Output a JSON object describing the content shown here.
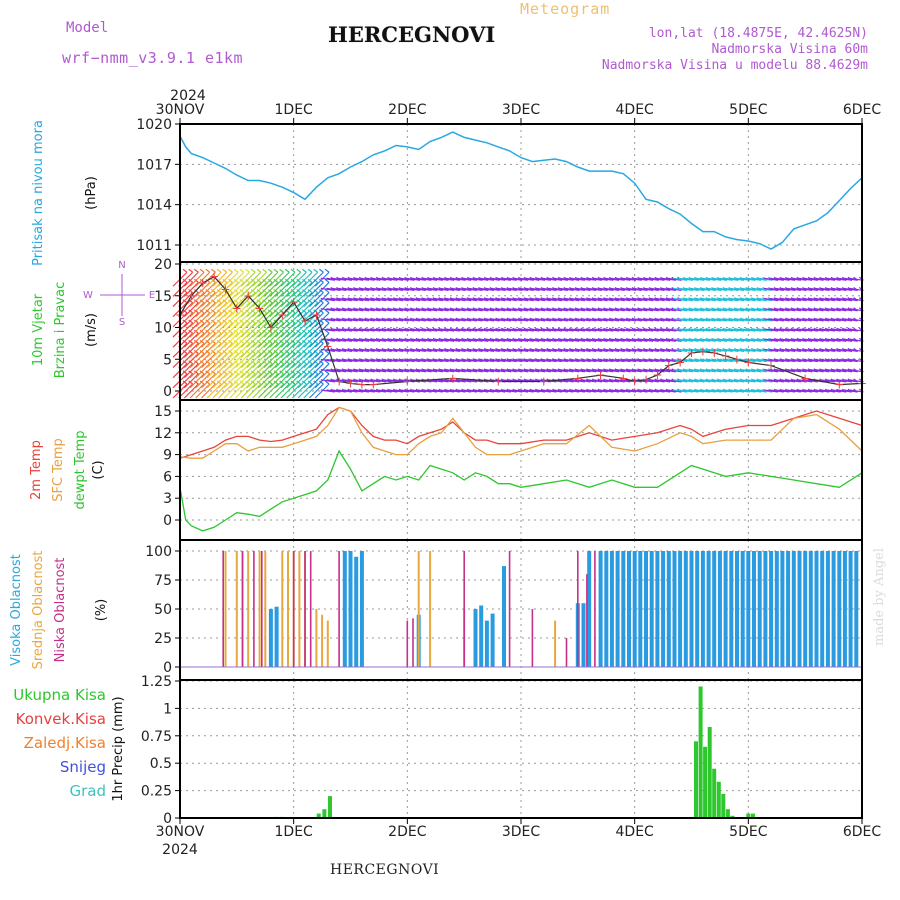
{
  "header": {
    "model_label": "Model",
    "model_value": "wrf−nmm_v3.9.1  e1km",
    "title": "HERCEGNOVI",
    "meteogram_label": "Meteogram",
    "lonlat": "lon,lat (18.4875E, 42.4625N)",
    "altitude": "Nadmorska Visina 60m",
    "model_altitude": "Nadmorska Visina u modelu 88.4629m"
  },
  "footer": {
    "title": "HERCEGNOVI",
    "watermark": "made by Angel"
  },
  "chart_data": [
    {
      "type": "line",
      "panel": "pressure",
      "ylabel": [
        "Pritisak na nivou mora",
        "(hPa)"
      ],
      "ylim": [
        1010,
        1020
      ],
      "yticks": [
        1011,
        1014,
        1017,
        1020
      ],
      "x_top_labels": {
        "year": "2024",
        "days": [
          "30NOV",
          "1DEC",
          "2DEC",
          "3DEC",
          "4DEC",
          "5DEC",
          "6DEC"
        ]
      },
      "x_bottom_labels": {
        "year": "2024",
        "days": [
          "30NOV",
          "1DEC",
          "2DEC",
          "3DEC",
          "4DEC",
          "5DEC",
          "6DEC"
        ]
      },
      "series": [
        {
          "color": "#29a8e0",
          "x": [
            0,
            0.05,
            0.1,
            0.2,
            0.3,
            0.4,
            0.5,
            0.6,
            0.7,
            0.8,
            0.9,
            1.0,
            1.1,
            1.2,
            1.3,
            1.4,
            1.5,
            1.6,
            1.7,
            1.8,
            1.9,
            2.0,
            2.1,
            2.2,
            2.3,
            2.4,
            2.5,
            2.6,
            2.7,
            2.8,
            2.9,
            3.0,
            3.1,
            3.2,
            3.3,
            3.4,
            3.5,
            3.6,
            3.7,
            3.8,
            3.9,
            4.0,
            4.1,
            4.2,
            4.3,
            4.4,
            4.5,
            4.6,
            4.7,
            4.8,
            4.9,
            5.0,
            5.1,
            5.2,
            5.3,
            5.4,
            5.5,
            5.6,
            5.7,
            5.8,
            5.9,
            6.0
          ],
          "values": [
            1019.1,
            1018.3,
            1017.8,
            1017.5,
            1017.1,
            1016.7,
            1016.2,
            1015.8,
            1015.8,
            1015.6,
            1015.3,
            1014.9,
            1014.4,
            1015.3,
            1016.0,
            1016.3,
            1016.8,
            1017.2,
            1017.7,
            1018.0,
            1018.4,
            1018.3,
            1018.1,
            1018.7,
            1019.0,
            1019.4,
            1019.0,
            1018.8,
            1018.6,
            1018.3,
            1018.0,
            1017.5,
            1017.2,
            1017.3,
            1017.4,
            1017.2,
            1016.8,
            1016.5,
            1016.5,
            1016.5,
            1016.3,
            1015.6,
            1014.4,
            1014.2,
            1013.7,
            1013.3,
            1012.6,
            1012.0,
            1012.0,
            1011.6,
            1011.4,
            1011.3,
            1011.1,
            1010.7,
            1011.2,
            1012.2,
            1012.5,
            1012.8,
            1013.4,
            1014.3,
            1015.2,
            1016.0
          ]
        }
      ]
    },
    {
      "type": "line",
      "panel": "wind",
      "ylabel": [
        "10m Vjetar",
        "Brzina i Pravac",
        "(m/s)"
      ],
      "ylim": [
        -1,
        20
      ],
      "yticks": [
        0,
        5,
        10,
        15,
        20
      ],
      "compass": [
        "N",
        "W",
        "E",
        "S"
      ],
      "series": [
        {
          "color": "#333333",
          "x": [
            0,
            0.1,
            0.2,
            0.3,
            0.4,
            0.5,
            0.6,
            0.7,
            0.8,
            0.9,
            1.0,
            1.1,
            1.2,
            1.3,
            1.4,
            1.5,
            1.6,
            1.7,
            2.0,
            2.4,
            2.8,
            3.2,
            3.5,
            3.7,
            3.9,
            4.0,
            4.1,
            4.2,
            4.3,
            4.4,
            4.5,
            4.6,
            4.7,
            4.8,
            4.9,
            5.0,
            5.2,
            5.5,
            5.8,
            6.0
          ],
          "values": [
            12,
            15,
            17,
            18,
            16,
            13,
            15,
            13,
            10,
            12,
            14,
            11,
            12,
            7,
            1.5,
            1.2,
            1.0,
            1.0,
            1.5,
            2.0,
            1.5,
            1.5,
            2.0,
            2.5,
            2.0,
            1.5,
            1.8,
            2.5,
            4.0,
            4.5,
            6.0,
            6.2,
            6.0,
            5.5,
            5.0,
            4.5,
            4.0,
            2.0,
            1.0,
            1.2
          ]
        }
      ],
      "wind_direction_bands": [
        {
          "x_from": 0,
          "x_to": 1.3,
          "color_scale": "rainbow"
        },
        {
          "x_from": 1.3,
          "x_to": 4.4,
          "color": "#8a2be2"
        },
        {
          "x_from": 4.4,
          "x_to": 5.2,
          "color": "#1ec0d8"
        },
        {
          "x_from": 5.2,
          "x_to": 6.0,
          "color": "#8a2be2"
        }
      ]
    },
    {
      "type": "line",
      "panel": "temperature",
      "ylabel": [
        "2m Temp",
        "SFC Temp",
        "dewpt Temp",
        "(C)"
      ],
      "ylim": [
        -2,
        16
      ],
      "yticks": [
        0,
        3,
        6,
        9,
        12,
        15
      ],
      "series": [
        {
          "name": "2m Temp",
          "color": "#e8433a",
          "x": [
            0,
            0.1,
            0.2,
            0.3,
            0.4,
            0.5,
            0.6,
            0.7,
            0.8,
            0.9,
            1.0,
            1.1,
            1.2,
            1.3,
            1.4,
            1.5,
            1.6,
            1.7,
            1.8,
            1.9,
            2.0,
            2.1,
            2.2,
            2.3,
            2.4,
            2.5,
            2.6,
            2.7,
            2.8,
            2.9,
            3.0,
            3.2,
            3.4,
            3.6,
            3.8,
            4.0,
            4.2,
            4.4,
            4.5,
            4.6,
            4.8,
            5.0,
            5.2,
            5.4,
            5.6,
            5.8,
            6.0
          ],
          "values": [
            8.5,
            9.0,
            9.5,
            10.0,
            11.0,
            11.5,
            11.5,
            11.0,
            10.8,
            11.0,
            11.5,
            12.0,
            12.5,
            14.5,
            15.5,
            15.0,
            13.0,
            11.5,
            11.0,
            11.0,
            10.5,
            11.5,
            12.0,
            12.5,
            13.5,
            12.0,
            11.0,
            11.0,
            10.5,
            10.5,
            10.5,
            11.0,
            11.0,
            12.0,
            11.0,
            11.5,
            12.0,
            13.0,
            12.5,
            11.5,
            12.5,
            13.0,
            13.0,
            14.0,
            15.0,
            14.0,
            13.0
          ]
        },
        {
          "name": "SFC Temp",
          "color": "#e8a040",
          "x": [
            0,
            0.1,
            0.2,
            0.3,
            0.4,
            0.5,
            0.6,
            0.7,
            0.8,
            0.9,
            1.0,
            1.1,
            1.2,
            1.3,
            1.4,
            1.5,
            1.6,
            1.7,
            1.8,
            1.9,
            2.0,
            2.1,
            2.2,
            2.3,
            2.4,
            2.5,
            2.6,
            2.7,
            2.8,
            2.9,
            3.0,
            3.2,
            3.4,
            3.6,
            3.8,
            4.0,
            4.2,
            4.4,
            4.5,
            4.6,
            4.8,
            5.0,
            5.2,
            5.4,
            5.6,
            5.8,
            6.0
          ],
          "values": [
            8.7,
            8.5,
            8.5,
            9.5,
            10.5,
            10.5,
            9.5,
            10.0,
            10.0,
            10.0,
            10.5,
            11.0,
            11.5,
            13.0,
            15.5,
            15.0,
            12.0,
            10.0,
            9.5,
            9.0,
            9.0,
            10.5,
            11.5,
            12.0,
            14.0,
            12.0,
            10.0,
            9.0,
            9.0,
            9.0,
            9.5,
            10.5,
            10.5,
            13.0,
            10.0,
            9.5,
            10.5,
            12.0,
            11.5,
            10.5,
            11.0,
            11.0,
            11.0,
            14.0,
            14.5,
            12.5,
            9.5
          ]
        },
        {
          "name": "dewpt Temp",
          "color": "#2ec72e",
          "x": [
            0,
            0.05,
            0.1,
            0.2,
            0.3,
            0.4,
            0.5,
            0.6,
            0.7,
            0.8,
            0.9,
            1.0,
            1.1,
            1.2,
            1.3,
            1.4,
            1.5,
            1.6,
            1.7,
            1.8,
            1.9,
            2.0,
            2.1,
            2.2,
            2.3,
            2.4,
            2.5,
            2.6,
            2.7,
            2.8,
            2.9,
            3.0,
            3.2,
            3.4,
            3.6,
            3.8,
            4.0,
            4.2,
            4.4,
            4.5,
            4.6,
            4.8,
            5.0,
            5.2,
            5.4,
            5.6,
            5.8,
            6.0
          ],
          "values": [
            4.5,
            0.0,
            -0.8,
            -1.5,
            -1.0,
            0.0,
            1.0,
            0.8,
            0.5,
            1.5,
            2.5,
            3.0,
            3.5,
            4.0,
            5.5,
            9.5,
            7.0,
            4.0,
            5.0,
            6.0,
            5.5,
            6.0,
            5.5,
            7.5,
            7.0,
            6.5,
            5.5,
            6.5,
            6.0,
            5.0,
            5.0,
            4.5,
            5.0,
            5.5,
            4.5,
            5.5,
            4.5,
            4.5,
            6.5,
            7.5,
            7.0,
            6.0,
            6.5,
            6.0,
            5.5,
            5.0,
            4.5,
            6.5
          ]
        }
      ]
    },
    {
      "type": "bar",
      "panel": "cloud",
      "ylabel": [
        "Visoka Oblacnost",
        "Srednja Oblacnost",
        "Niska Oblacnost",
        "(%)"
      ],
      "ylim": [
        0,
        100
      ],
      "yticks": [
        0,
        25,
        50,
        75,
        100
      ],
      "series": [
        {
          "name": "Visoka Oblacnost",
          "color": "#2a9be0",
          "x": [
            0.8,
            0.85,
            1.45,
            1.5,
            1.55,
            1.6,
            2.1,
            2.6,
            2.65,
            2.7,
            2.75,
            2.85,
            3.5,
            3.55,
            3.6,
            3.7,
            3.75,
            3.8,
            3.85,
            3.9,
            3.95,
            4.0,
            4.05,
            4.1,
            4.15,
            4.2,
            4.25,
            4.3,
            4.35,
            4.4,
            4.45,
            4.5,
            4.55,
            4.6,
            4.65,
            4.7,
            4.75,
            4.8,
            4.85,
            4.9,
            4.95,
            5.0,
            5.05,
            5.1,
            5.15,
            5.2,
            5.25,
            5.3,
            5.35,
            5.4,
            5.45,
            5.5,
            5.55,
            5.6,
            5.65,
            5.7,
            5.75,
            5.8,
            5.85,
            5.9,
            5.95
          ],
          "values": [
            50,
            52,
            100,
            100,
            95,
            100,
            45,
            50,
            53,
            40,
            46,
            87,
            55,
            55,
            100,
            100,
            100,
            100,
            100,
            100,
            100,
            100,
            100,
            100,
            100,
            100,
            100,
            100,
            100,
            100,
            100,
            100,
            100,
            100,
            100,
            100,
            100,
            100,
            100,
            100,
            100,
            100,
            100,
            100,
            100,
            100,
            100,
            100,
            100,
            100,
            100,
            100,
            100,
            100,
            100,
            100,
            100,
            100,
            100,
            100,
            100
          ]
        },
        {
          "name": "Srednja Oblacnost",
          "color": "#e8a840",
          "x": [
            0.4,
            0.5,
            0.55,
            0.6,
            0.7,
            0.75,
            0.9,
            0.95,
            1.0,
            1.05,
            1.1,
            1.2,
            1.25,
            1.3,
            2.1,
            2.2,
            2.5,
            3.3
          ],
          "values": [
            100,
            100,
            100,
            100,
            100,
            100,
            100,
            100,
            100,
            100,
            100,
            50,
            45,
            40,
            100,
            100,
            50,
            40
          ]
        },
        {
          "name": "Niska Oblacnost",
          "color": "#c4318a",
          "x": [
            0.38,
            0.55,
            0.65,
            0.72,
            1.0,
            1.1,
            1.15,
            1.4,
            2.0,
            2.05,
            2.5,
            2.9,
            3.1,
            3.4,
            3.5,
            3.58,
            3.65
          ],
          "values": [
            100,
            100,
            100,
            100,
            100,
            100,
            100,
            100,
            40,
            42,
            100,
            100,
            50,
            25,
            100,
            80,
            100
          ]
        }
      ]
    },
    {
      "type": "bar",
      "panel": "precipitation",
      "ylabel": [
        "1hr Precip (mm)"
      ],
      "legend_labels": [
        "Ukupna Kisa",
        "Konvek.Kisa",
        "Zaledj.Kisa",
        "Snijeg",
        "Grad"
      ],
      "legend_colors": [
        "#2ec72e",
        "#e84040",
        "#f08030",
        "#4050e0",
        "#40c0c0"
      ],
      "ylim": [
        0,
        1.25
      ],
      "yticks": [
        0,
        0.25,
        0.5,
        0.75,
        1,
        1.25
      ],
      "ytick_labels": [
        "0",
        "0.25",
        "0.5",
        "0.75",
        "1",
        "1.25"
      ],
      "series": [
        {
          "name": "Ukupna Kisa",
          "color": "#2ec72e",
          "x": [
            0.85,
            0.9,
            1.22,
            1.27,
            1.32,
            4.54,
            4.58,
            4.62,
            4.66,
            4.7,
            4.74,
            4.78,
            4.82,
            4.86,
            5.0,
            5.04
          ],
          "values": [
            0.01,
            0.01,
            0.04,
            0.08,
            0.2,
            0.7,
            1.2,
            0.65,
            0.83,
            0.45,
            0.33,
            0.22,
            0.08,
            0.02,
            0.04,
            0.04
          ]
        }
      ]
    }
  ]
}
